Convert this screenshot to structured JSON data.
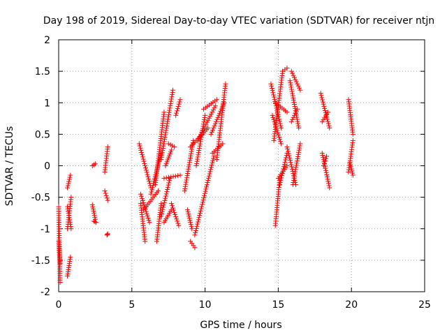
{
  "chart_data": {
    "type": "scatter",
    "title": "Day 198 of 2019, Sidereal Day-to-day VTEC variation (SDTVAR) for receiver ntjn",
    "xlabel": "GPS time / hours",
    "ylabel": "SDTVAR / TECUs",
    "xlim": [
      0,
      25
    ],
    "ylim": [
      -2,
      2
    ],
    "x_ticks": [
      0,
      5,
      10,
      15,
      20,
      25
    ],
    "y_ticks": [
      -2,
      -1.5,
      -1,
      -0.5,
      0,
      0.5,
      1,
      1.5,
      2
    ],
    "x_tick_labels": [
      "0",
      "5",
      "10",
      "15",
      "20",
      "25"
    ],
    "y_tick_labels": [
      "-2",
      "-1.5",
      "-1",
      "-0.5",
      "0",
      "0.5",
      "1",
      "1.5",
      "2"
    ],
    "grid": true,
    "marker": "+",
    "marker_color": "#ff0000",
    "segments": [
      {
        "x0": 0.0,
        "y0": -0.65,
        "x1": 0.1,
        "y1": -1.85
      },
      {
        "x0": 0.0,
        "y0": -1.2,
        "x1": 0.1,
        "y1": -1.55
      },
      {
        "x0": 0.6,
        "y0": -1.75,
        "x1": 0.8,
        "y1": -1.45
      },
      {
        "x0": 0.6,
        "y0": -1.0,
        "x1": 0.85,
        "y1": -0.5
      },
      {
        "x0": 0.6,
        "y0": -0.65,
        "x1": 0.85,
        "y1": -1.0
      },
      {
        "x0": 0.6,
        "y0": -0.35,
        "x1": 0.8,
        "y1": -0.15
      },
      {
        "x0": 2.3,
        "y0": -0.62,
        "x1": 2.5,
        "y1": -0.85
      },
      {
        "x0": 2.4,
        "y0": -0.88,
        "x1": 2.55,
        "y1": -0.9
      },
      {
        "x0": 2.3,
        "y0": 0.0,
        "x1": 2.5,
        "y1": 0.03
      },
      {
        "x0": 3.15,
        "y0": -0.4,
        "x1": 3.35,
        "y1": -0.55
      },
      {
        "x0": 3.15,
        "y0": -0.1,
        "x1": 3.35,
        "y1": 0.3
      },
      {
        "x0": 3.3,
        "y0": -1.1,
        "x1": 3.35,
        "y1": -1.08
      },
      {
        "x0": 5.5,
        "y0": 0.35,
        "x1": 6.3,
        "y1": -0.35
      },
      {
        "x0": 5.6,
        "y0": -0.6,
        "x1": 5.9,
        "y1": -1.2
      },
      {
        "x0": 5.6,
        "y0": -0.45,
        "x1": 6.2,
        "y1": -0.9
      },
      {
        "x0": 5.8,
        "y0": -0.7,
        "x1": 6.8,
        "y1": -0.4
      },
      {
        "x0": 6.3,
        "y0": -0.45,
        "x1": 7.0,
        "y1": 0.2
      },
      {
        "x0": 6.6,
        "y0": -0.3,
        "x1": 7.2,
        "y1": 0.85
      },
      {
        "x0": 6.7,
        "y0": -1.2,
        "x1": 7.0,
        "y1": -0.6
      },
      {
        "x0": 7.0,
        "y0": 0.1,
        "x1": 7.8,
        "y1": 1.2
      },
      {
        "x0": 7.0,
        "y0": -0.8,
        "x1": 7.6,
        "y1": -0.2
      },
      {
        "x0": 7.2,
        "y0": -0.2,
        "x1": 8.3,
        "y1": -0.15
      },
      {
        "x0": 7.3,
        "y0": 0.0,
        "x1": 7.7,
        "y1": 0.25
      },
      {
        "x0": 7.2,
        "y0": -0.9,
        "x1": 7.7,
        "y1": -0.7
      },
      {
        "x0": 7.7,
        "y0": -0.6,
        "x1": 8.2,
        "y1": -0.95
      },
      {
        "x0": 8.0,
        "y0": 0.8,
        "x1": 8.3,
        "y1": 1.05
      },
      {
        "x0": 7.5,
        "y0": 0.35,
        "x1": 7.9,
        "y1": 0.3
      },
      {
        "x0": 8.6,
        "y0": -0.4,
        "x1": 9.2,
        "y1": 0.4
      },
      {
        "x0": 8.8,
        "y0": -0.7,
        "x1": 9.1,
        "y1": -1.0
      },
      {
        "x0": 9.0,
        "y0": -1.2,
        "x1": 9.3,
        "y1": -1.3
      },
      {
        "x0": 9.0,
        "y0": 0.3,
        "x1": 10.2,
        "y1": 0.6
      },
      {
        "x0": 9.3,
        "y0": -1.1,
        "x1": 10.6,
        "y1": 0.15
      },
      {
        "x0": 9.4,
        "y0": 0.0,
        "x1": 10.0,
        "y1": 0.8
      },
      {
        "x0": 9.5,
        "y0": 0.4,
        "x1": 10.7,
        "y1": 0.95
      },
      {
        "x0": 9.9,
        "y0": 0.9,
        "x1": 10.8,
        "y1": 1.05
      },
      {
        "x0": 10.4,
        "y0": 0.5,
        "x1": 11.3,
        "y1": 1.0
      },
      {
        "x0": 10.8,
        "y0": 0.1,
        "x1": 11.4,
        "y1": 1.3
      },
      {
        "x0": 10.5,
        "y0": 0.2,
        "x1": 11.2,
        "y1": 0.35
      },
      {
        "x0": 14.5,
        "y0": 1.3,
        "x1": 15.2,
        "y1": 0.6
      },
      {
        "x0": 14.6,
        "y0": 0.8,
        "x1": 15.2,
        "y1": 0.35
      },
      {
        "x0": 14.7,
        "y0": 0.4,
        "x1": 15.3,
        "y1": 1.5
      },
      {
        "x0": 14.8,
        "y0": 1.0,
        "x1": 15.6,
        "y1": 0.85
      },
      {
        "x0": 14.8,
        "y0": -0.95,
        "x1": 15.1,
        "y1": -0.2
      },
      {
        "x0": 15.0,
        "y0": -0.2,
        "x1": 15.6,
        "y1": 0.0
      },
      {
        "x0": 15.1,
        "y0": -0.3,
        "x1": 15.6,
        "y1": 0.2
      },
      {
        "x0": 15.3,
        "y0": 1.5,
        "x1": 15.6,
        "y1": 1.55
      },
      {
        "x0": 15.8,
        "y0": 1.35,
        "x1": 16.4,
        "y1": 0.6
      },
      {
        "x0": 15.9,
        "y0": 1.5,
        "x1": 16.5,
        "y1": 1.2
      },
      {
        "x0": 15.9,
        "y0": 0.7,
        "x1": 16.3,
        "y1": 0.9
      },
      {
        "x0": 15.6,
        "y0": 0.3,
        "x1": 16.2,
        "y1": -0.3
      },
      {
        "x0": 16.0,
        "y0": -0.3,
        "x1": 16.5,
        "y1": 0.35
      },
      {
        "x0": 17.9,
        "y0": 1.15,
        "x1": 18.5,
        "y1": 0.6
      },
      {
        "x0": 18.0,
        "y0": 0.2,
        "x1": 18.5,
        "y1": -0.35
      },
      {
        "x0": 18.0,
        "y0": 0.7,
        "x1": 18.4,
        "y1": 0.85
      },
      {
        "x0": 18.1,
        "y0": 0.0,
        "x1": 18.3,
        "y1": 0.15
      },
      {
        "x0": 19.8,
        "y0": 1.05,
        "x1": 20.1,
        "y1": 0.5
      },
      {
        "x0": 19.8,
        "y0": -0.1,
        "x1": 20.1,
        "y1": 0.4
      },
      {
        "x0": 19.9,
        "y0": 0.05,
        "x1": 20.1,
        "y1": -0.15
      }
    ]
  }
}
